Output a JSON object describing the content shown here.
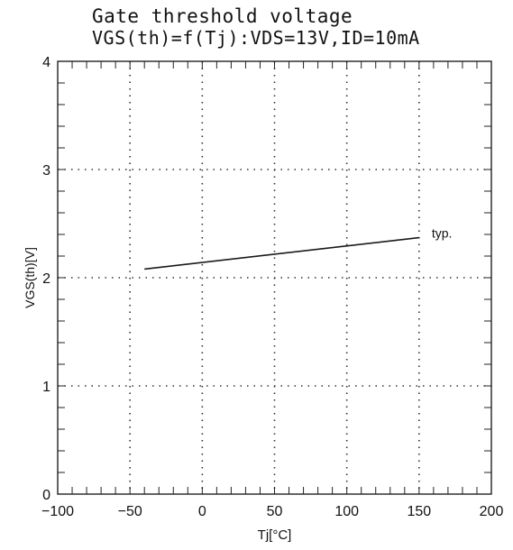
{
  "chart_data": {
    "type": "line",
    "title": "Gate threshold voltage",
    "subtitle": "VGS(th)=f(Tj):VDS=13V,ID=10mA",
    "xlabel": "Tj[°C]",
    "ylabel": "VGS(th)[V]",
    "xlim": [
      -100,
      200
    ],
    "ylim": [
      0,
      4
    ],
    "x_ticks": [
      -100,
      -50,
      0,
      50,
      100,
      150,
      200
    ],
    "y_ticks": [
      0,
      1,
      2,
      3,
      4
    ],
    "grid": true,
    "series": [
      {
        "name": "typ.",
        "x": [
          -40,
          150
        ],
        "y": [
          2.08,
          2.37
        ],
        "color": "#1a1a1a"
      }
    ]
  }
}
